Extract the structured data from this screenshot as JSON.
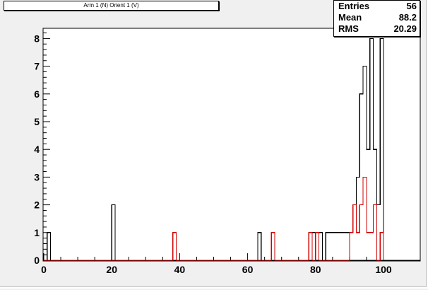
{
  "title": "Arm 1 (N) Orient 1 (V)",
  "stats": [
    {
      "label": "Entries",
      "value": "56"
    },
    {
      "label": "Mean",
      "value": "88.2"
    },
    {
      "label": "RMS",
      "value": "20.29"
    }
  ],
  "colors": {
    "background": "#f0f0f0",
    "frame": "#ffffff",
    "hist1": "#000000",
    "hist2": "#d00000"
  },
  "chart_data": {
    "type": "bar",
    "style": "step-histogram",
    "xlim": [
      0,
      100
    ],
    "ylim": [
      0,
      8.4
    ],
    "bin_width": 1,
    "x_ticks": [
      "0",
      "20",
      "40",
      "60",
      "80",
      "100"
    ],
    "x_tick_values": [
      0,
      20,
      40,
      60,
      80,
      100
    ],
    "y_ticks": [
      "0",
      "1",
      "2",
      "3",
      "4",
      "5",
      "6",
      "7",
      "8"
    ],
    "y_tick_values": [
      0,
      1,
      2,
      3,
      4,
      5,
      6,
      7,
      8
    ],
    "grid": false,
    "series": [
      {
        "color": "#000000",
        "bins": [
          {
            "x": 1,
            "y": 1
          },
          {
            "x": 20,
            "y": 2
          },
          {
            "x": 63,
            "y": 1
          },
          {
            "x": 79,
            "y": 1
          },
          {
            "x": 81,
            "y": 1
          },
          {
            "x": 83,
            "y": 1
          },
          {
            "x": 84,
            "y": 1
          },
          {
            "x": 85,
            "y": 1
          },
          {
            "x": 86,
            "y": 1
          },
          {
            "x": 87,
            "y": 1
          },
          {
            "x": 88,
            "y": 1
          },
          {
            "x": 89,
            "y": 1
          },
          {
            "x": 90,
            "y": 1
          },
          {
            "x": 91,
            "y": 2
          },
          {
            "x": 92,
            "y": 3
          },
          {
            "x": 93,
            "y": 6
          },
          {
            "x": 94,
            "y": 7
          },
          {
            "x": 95,
            "y": 4
          },
          {
            "x": 96,
            "y": 8
          },
          {
            "x": 97,
            "y": 4
          },
          {
            "x": 98,
            "y": 2
          },
          {
            "x": 99,
            "y": 8
          }
        ]
      },
      {
        "color": "#d00000",
        "bins": [
          {
            "x": 38,
            "y": 1
          },
          {
            "x": 67,
            "y": 1
          },
          {
            "x": 78,
            "y": 1
          },
          {
            "x": 80,
            "y": 1
          },
          {
            "x": 90,
            "y": 1
          },
          {
            "x": 91,
            "y": 2
          },
          {
            "x": 92,
            "y": 1
          },
          {
            "x": 93,
            "y": 2
          },
          {
            "x": 94,
            "y": 3
          },
          {
            "x": 95,
            "y": 1
          },
          {
            "x": 96,
            "y": 1
          },
          {
            "x": 97,
            "y": 2
          },
          {
            "x": 99,
            "y": 1
          }
        ]
      }
    ]
  }
}
